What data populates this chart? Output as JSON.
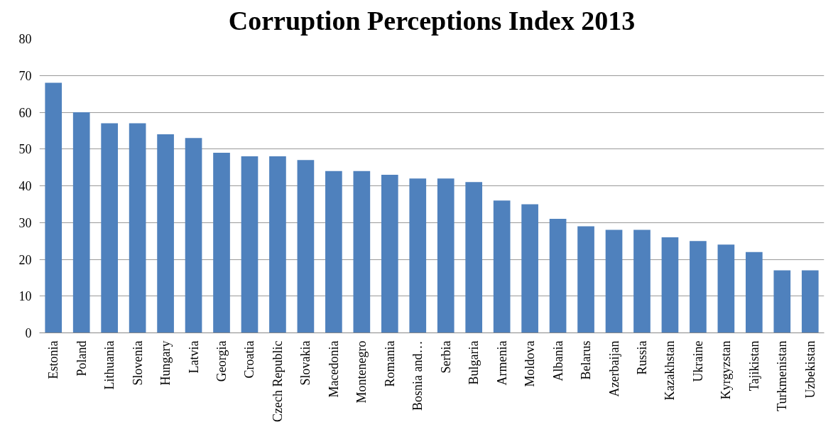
{
  "chart_data": {
    "type": "bar",
    "title": "Corruption Perceptions Index 2013",
    "categories": [
      "Estonia",
      "Poland",
      "Lithuania",
      "Slovenia",
      "Hungary",
      "Latvia",
      "Georgia",
      "Croatia",
      "Czech Republic",
      "Slovakia",
      "Macedonia",
      "Montenegro",
      "Romania",
      "Bosnia and…",
      "Serbia",
      "Bulgaria",
      "Armenia",
      "Moldova",
      "Albania",
      "Belarus",
      "Azerbaijan",
      "Russia",
      "Kazakhstan",
      "Ukraine",
      "Kyrgyzstan",
      "Tajikistan",
      "Turkmenistan",
      "Uzbekistan"
    ],
    "values": [
      68,
      60,
      57,
      57,
      54,
      53,
      49,
      48,
      48,
      47,
      44,
      44,
      43,
      42,
      42,
      41,
      36,
      35,
      31,
      29,
      28,
      28,
      26,
      25,
      24,
      22,
      17,
      17
    ],
    "color": "#4f81bd",
    "ylim": [
      0,
      80
    ],
    "yticks": [
      0,
      10,
      20,
      30,
      40,
      50,
      60,
      70,
      80
    ],
    "grid": "y"
  }
}
